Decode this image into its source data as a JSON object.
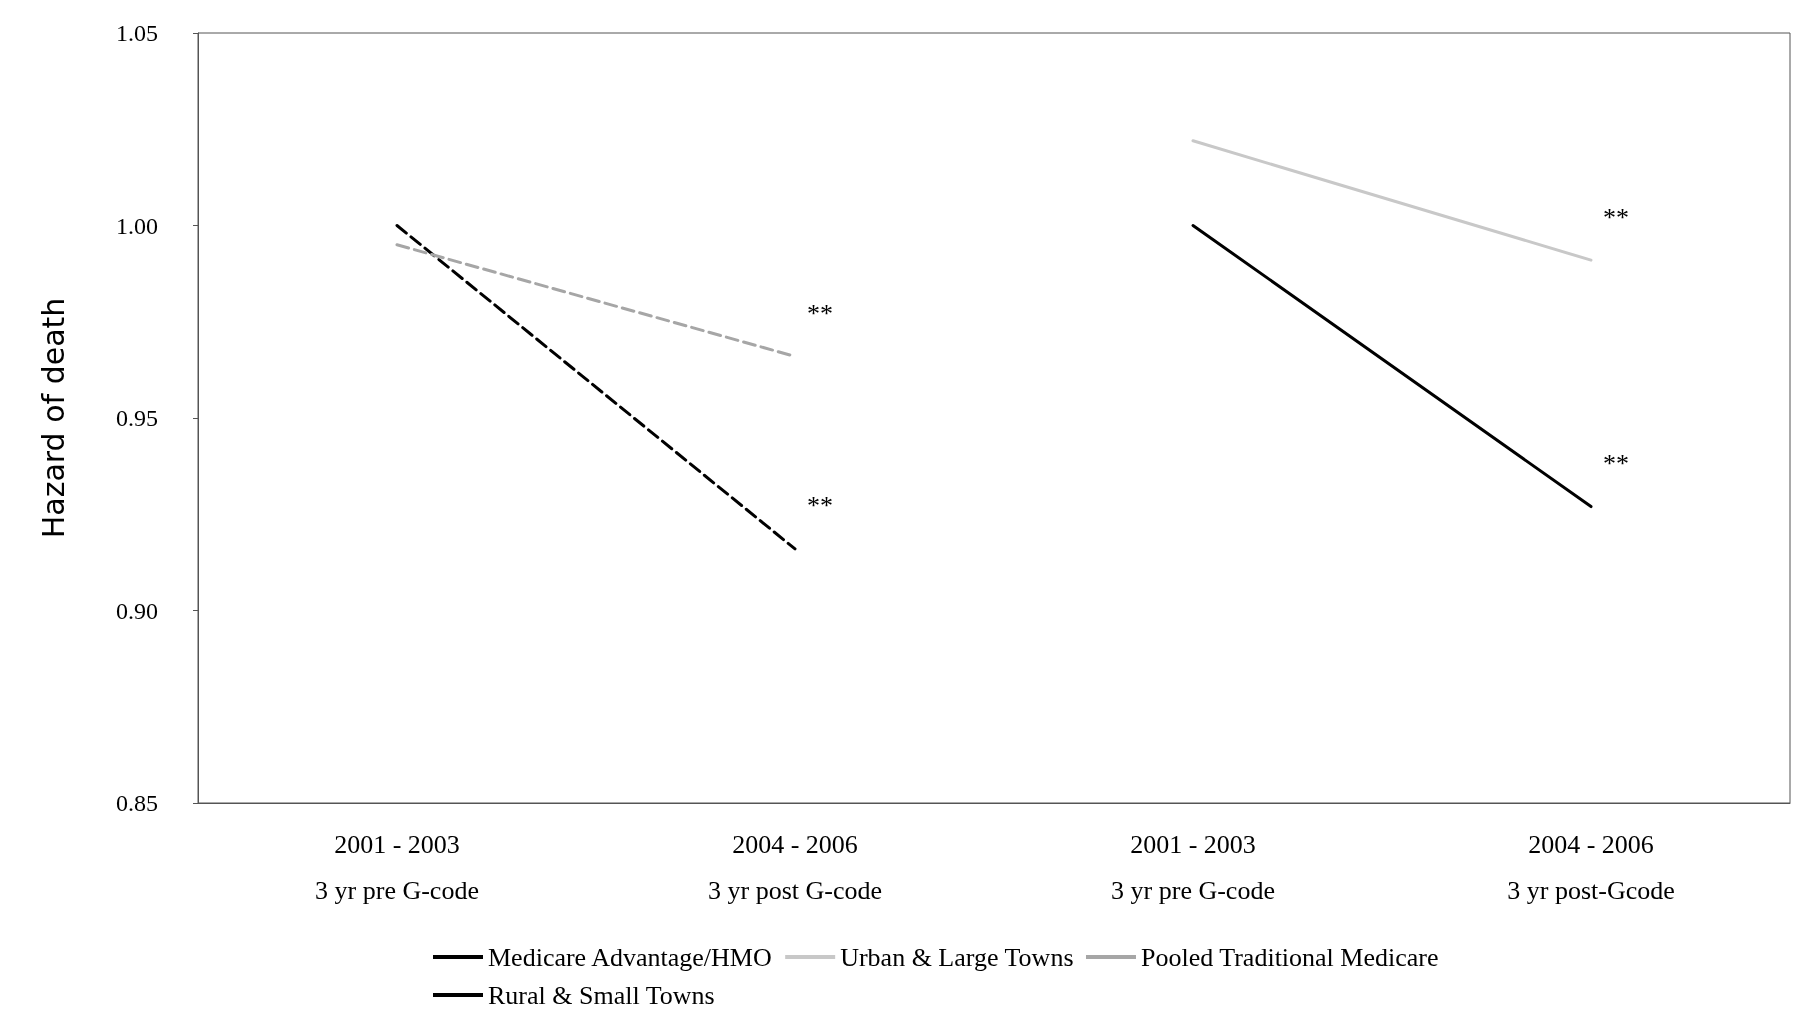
{
  "chart_data": {
    "type": "line",
    "ylabel": "Hazard of death",
    "categories": [
      "2001 - 2003\n3 yr pre G-code",
      "2004 - 2006\n3 yr post G-code",
      "2001 - 2003\n3 yr pre G-code",
      "2004 - 2006\n3 yr post-Gcode"
    ],
    "series": [
      {
        "name": "Medicare Advantage/HMO",
        "color": "#000000",
        "line_style": "dashed",
        "values": [
          1.0,
          0.916,
          null,
          null
        ]
      },
      {
        "name": "Urban & Large Towns",
        "color": "#c8c8c8",
        "line_style": "solid",
        "values": [
          null,
          null,
          1.022,
          0.991
        ]
      },
      {
        "name": "Pooled Traditional Medicare",
        "color": "#a6a6a6",
        "line_style": "dashed",
        "values": [
          0.995,
          0.966,
          null,
          null
        ]
      },
      {
        "name": "Rural & Small Towns",
        "color": "#000000",
        "line_style": "solid",
        "values": [
          null,
          null,
          1.0,
          0.927
        ]
      }
    ],
    "ylim": [
      0.85,
      1.05
    ],
    "yticks": [
      {
        "value": 0.85,
        "label": "0.85"
      },
      {
        "value": 0.9,
        "label": "0.90"
      },
      {
        "value": 0.95,
        "label": "0.95"
      },
      {
        "value": 1.0,
        "label": "1.00"
      },
      {
        "value": 1.05,
        "label": "1.05"
      }
    ],
    "grid": false,
    "legend": "bottom",
    "marker": "none",
    "annotations": [
      "**",
      "**",
      "**",
      "**"
    ]
  }
}
